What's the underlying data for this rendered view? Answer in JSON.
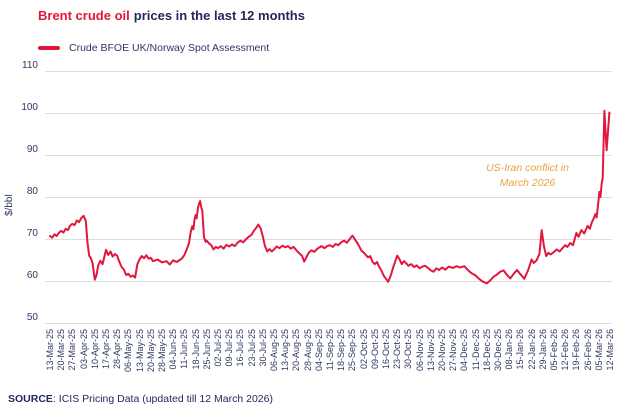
{
  "title": {
    "highlight": "Brent crude oil",
    "rest": "prices in the last 12 months",
    "highlight_color": "#E2173D",
    "rest_color": "#23295B"
  },
  "legend": {
    "label": "Crude BFOE UK/Norway Spot Assessment",
    "swatch_color": "#E2173D"
  },
  "source": {
    "label": "SOURCE",
    "text": ": ICIS Pricing Data (updated till 12 March 2026)"
  },
  "colors": {
    "line": "#E2173D",
    "grid": "#DCDCE1",
    "axis_text": "#2E3862",
    "annotation": "#E8A43E",
    "background": "#FFFFFF"
  },
  "chart_data": {
    "type": "line",
    "title": "Brent crude oil prices in the last 12 months",
    "ylabel": "$/bbl",
    "xlabel": "",
    "ylim": [
      50,
      110
    ],
    "y_ticks": [
      110,
      100,
      90,
      80,
      70,
      60,
      50
    ],
    "grid": "horizontal",
    "legend_position": "top-left",
    "annotation": {
      "line1": "US-Iran conflict in",
      "line2": "March 2026",
      "color": "#E8A43E",
      "style": "italic"
    },
    "x_tick_labels": [
      "13-Mar-25",
      "20-Mar-25",
      "27-Mar-25",
      "03-Apr-25",
      "10-Apr-25",
      "17-Apr-25",
      "28-Apr-25",
      "06-May-25",
      "13-May-25",
      "20-May-25",
      "28-May-25",
      "04-Jun-25",
      "11-Jun-25",
      "18-Jun-25",
      "25-Jun-25",
      "02-Jul-25",
      "09-Jul-25",
      "16-Jul-25",
      "23-Jul-25",
      "30-Jul-25",
      "06-Aug-25",
      "13-Aug-25",
      "20-Aug-25",
      "28-Aug-25",
      "04-Sep-25",
      "11-Sep-25",
      "18-Sep-25",
      "25-Sep-25",
      "02-Oct-25",
      "09-Oct-25",
      "16-Oct-25",
      "23-Oct-25",
      "30-Oct-25",
      "06-Nov-25",
      "13-Nov-25",
      "20-Nov-25",
      "27-Nov-25",
      "04-Dec-25",
      "11-Dec-25",
      "18-Dec-25",
      "30-Dec-25",
      "08-Jan-26",
      "15-Jan-26",
      "22-Jan-26",
      "29-Jan-26",
      "05-Feb-26",
      "12-Feb-26",
      "19-Feb-26",
      "26-Feb-26",
      "05-Mar-26",
      "12-Mar-26"
    ],
    "series": [
      {
        "name": "Crude BFOE UK/Norway Spot Assessment",
        "color": "#E2173D",
        "points": [
          [
            0,
            70.6
          ],
          [
            0.2,
            70.2
          ],
          [
            0.4,
            71.0
          ],
          [
            0.6,
            70.6
          ],
          [
            0.8,
            71.4
          ],
          [
            1,
            71.8
          ],
          [
            1.2,
            71.4
          ],
          [
            1.4,
            72.3
          ],
          [
            1.6,
            72.0
          ],
          [
            1.8,
            73.1
          ],
          [
            2,
            73.5
          ],
          [
            2.2,
            73.2
          ],
          [
            2.4,
            74.3
          ],
          [
            2.6,
            73.9
          ],
          [
            2.8,
            74.9
          ],
          [
            3,
            75.4
          ],
          [
            3.2,
            74.2
          ],
          [
            3.35,
            69.0
          ],
          [
            3.5,
            65.9
          ],
          [
            3.65,
            65.3
          ],
          [
            3.8,
            64.1
          ],
          [
            4,
            60.2
          ],
          [
            4.15,
            61.3
          ],
          [
            4.3,
            63.6
          ],
          [
            4.5,
            64.7
          ],
          [
            4.7,
            63.9
          ],
          [
            4.85,
            65.6
          ],
          [
            5,
            67.3
          ],
          [
            5.2,
            66.1
          ],
          [
            5.4,
            66.9
          ],
          [
            5.6,
            65.7
          ],
          [
            5.8,
            66.3
          ],
          [
            6,
            65.9
          ],
          [
            6.2,
            64.4
          ],
          [
            6.4,
            63.2
          ],
          [
            6.6,
            62.6
          ],
          [
            6.8,
            61.3
          ],
          [
            7,
            61.6
          ],
          [
            7.2,
            60.9
          ],
          [
            7.4,
            61.2
          ],
          [
            7.6,
            60.7
          ],
          [
            7.8,
            63.9
          ],
          [
            8,
            65.1
          ],
          [
            8.2,
            65.8
          ],
          [
            8.4,
            65.3
          ],
          [
            8.6,
            66.0
          ],
          [
            8.8,
            65.2
          ],
          [
            9,
            65.4
          ],
          [
            9.2,
            64.6
          ],
          [
            9.6,
            65.0
          ],
          [
            10,
            64.3
          ],
          [
            10.4,
            64.6
          ],
          [
            10.7,
            63.8
          ],
          [
            11,
            64.8
          ],
          [
            11.3,
            64.4
          ],
          [
            11.6,
            64.9
          ],
          [
            11.8,
            65.3
          ],
          [
            12,
            66.1
          ],
          [
            12.2,
            67.3
          ],
          [
            12.4,
            68.8
          ],
          [
            12.55,
            71.4
          ],
          [
            12.7,
            72.9
          ],
          [
            12.8,
            72.2
          ],
          [
            12.9,
            74.5
          ],
          [
            13,
            75.6
          ],
          [
            13.1,
            74.8
          ],
          [
            13.2,
            77.1
          ],
          [
            13.3,
            78.3
          ],
          [
            13.4,
            78.9
          ],
          [
            13.5,
            77.5
          ],
          [
            13.6,
            76.7
          ],
          [
            13.75,
            70.3
          ],
          [
            13.9,
            69.2
          ],
          [
            14,
            69.5
          ],
          [
            14.2,
            68.8
          ],
          [
            14.4,
            68.4
          ],
          [
            14.6,
            67.4
          ],
          [
            14.8,
            68.0
          ],
          [
            15,
            67.7
          ],
          [
            15.25,
            68.2
          ],
          [
            15.5,
            67.6
          ],
          [
            15.75,
            68.5
          ],
          [
            16,
            68.1
          ],
          [
            16.25,
            68.6
          ],
          [
            16.5,
            68.2
          ],
          [
            16.75,
            69.0
          ],
          [
            17,
            69.5
          ],
          [
            17.25,
            69.1
          ],
          [
            17.5,
            69.8
          ],
          [
            17.75,
            70.4
          ],
          [
            18,
            70.9
          ],
          [
            18.2,
            71.8
          ],
          [
            18.4,
            72.5
          ],
          [
            18.6,
            73.3
          ],
          [
            18.8,
            72.4
          ],
          [
            19,
            70.5
          ],
          [
            19.2,
            68.2
          ],
          [
            19.4,
            66.9
          ],
          [
            19.6,
            67.5
          ],
          [
            19.8,
            66.9
          ],
          [
            20,
            67.4
          ],
          [
            20.25,
            68.1
          ],
          [
            20.5,
            67.7
          ],
          [
            20.75,
            68.3
          ],
          [
            21,
            67.9
          ],
          [
            21.25,
            68.2
          ],
          [
            21.5,
            67.6
          ],
          [
            21.75,
            68.0
          ],
          [
            22,
            67.2
          ],
          [
            22.25,
            66.5
          ],
          [
            22.5,
            65.9
          ],
          [
            22.7,
            64.5
          ],
          [
            22.9,
            65.6
          ],
          [
            23.1,
            66.6
          ],
          [
            23.35,
            67.2
          ],
          [
            23.6,
            66.8
          ],
          [
            23.8,
            67.4
          ],
          [
            24,
            67.8
          ],
          [
            24.25,
            68.2
          ],
          [
            24.5,
            67.7
          ],
          [
            24.75,
            68.2
          ],
          [
            25,
            68.4
          ],
          [
            25.25,
            68.0
          ],
          [
            25.5,
            68.7
          ],
          [
            25.75,
            68.4
          ],
          [
            26,
            69.1
          ],
          [
            26.25,
            69.5
          ],
          [
            26.5,
            69.0
          ],
          [
            26.75,
            69.8
          ],
          [
            27,
            70.7
          ],
          [
            27.2,
            69.9
          ],
          [
            27.4,
            69.1
          ],
          [
            27.6,
            68.2
          ],
          [
            27.8,
            67.1
          ],
          [
            28,
            66.7
          ],
          [
            28.2,
            66.1
          ],
          [
            28.4,
            65.5
          ],
          [
            28.6,
            65.8
          ],
          [
            28.8,
            64.4
          ],
          [
            29,
            63.9
          ],
          [
            29.2,
            64.4
          ],
          [
            29.4,
            63.2
          ],
          [
            29.6,
            62.3
          ],
          [
            29.8,
            61.1
          ],
          [
            30,
            60.4
          ],
          [
            30.2,
            59.7
          ],
          [
            30.4,
            61.0
          ],
          [
            30.7,
            63.6
          ],
          [
            31,
            65.9
          ],
          [
            31.2,
            65.1
          ],
          [
            31.4,
            63.9
          ],
          [
            31.6,
            64.6
          ],
          [
            31.8,
            64.1
          ],
          [
            32,
            63.5
          ],
          [
            32.25,
            63.9
          ],
          [
            32.5,
            63.2
          ],
          [
            32.75,
            63.6
          ],
          [
            33,
            62.9
          ],
          [
            33.25,
            63.3
          ],
          [
            33.5,
            63.5
          ],
          [
            33.75,
            63.0
          ],
          [
            34,
            62.4
          ],
          [
            34.25,
            62.1
          ],
          [
            34.5,
            62.9
          ],
          [
            34.75,
            62.5
          ],
          [
            35,
            63.1
          ],
          [
            35.3,
            62.6
          ],
          [
            35.6,
            63.3
          ],
          [
            36,
            63.0
          ],
          [
            36.3,
            63.4
          ],
          [
            36.6,
            63.1
          ],
          [
            37,
            63.4
          ],
          [
            37.3,
            62.5
          ],
          [
            37.6,
            61.8
          ],
          [
            38,
            61.2
          ],
          [
            38.3,
            60.4
          ],
          [
            38.6,
            59.8
          ],
          [
            39,
            59.3
          ],
          [
            39.3,
            60.0
          ],
          [
            39.6,
            60.9
          ],
          [
            39.9,
            61.4
          ],
          [
            40.2,
            62.1
          ],
          [
            40.5,
            62.4
          ],
          [
            40.8,
            61.3
          ],
          [
            41.1,
            60.5
          ],
          [
            41.4,
            61.6
          ],
          [
            41.7,
            62.5
          ],
          [
            42,
            61.5
          ],
          [
            42.35,
            60.4
          ],
          [
            42.7,
            62.5
          ],
          [
            43,
            65.0
          ],
          [
            43.2,
            64.2
          ],
          [
            43.45,
            64.8
          ],
          [
            43.7,
            66.3
          ],
          [
            43.9,
            72.0
          ],
          [
            44.1,
            68.2
          ],
          [
            44.3,
            65.8
          ],
          [
            44.5,
            66.6
          ],
          [
            44.7,
            66.2
          ],
          [
            45,
            66.8
          ],
          [
            45.25,
            67.4
          ],
          [
            45.5,
            66.9
          ],
          [
            45.75,
            67.7
          ],
          [
            46,
            68.4
          ],
          [
            46.2,
            68.0
          ],
          [
            46.45,
            68.9
          ],
          [
            46.7,
            68.4
          ],
          [
            47,
            71.3
          ],
          [
            47.2,
            70.4
          ],
          [
            47.45,
            72.0
          ],
          [
            47.7,
            71.2
          ],
          [
            48,
            73.0
          ],
          [
            48.2,
            72.3
          ],
          [
            48.4,
            74.0
          ],
          [
            48.55,
            74.8
          ],
          [
            48.7,
            75.8
          ],
          [
            48.8,
            75.0
          ],
          [
            48.95,
            78.3
          ],
          [
            49.05,
            81.1
          ],
          [
            49.15,
            79.9
          ],
          [
            49.25,
            82.9
          ],
          [
            49.35,
            84.5
          ],
          [
            49.5,
            100.4
          ],
          [
            49.7,
            91.0
          ],
          [
            49.95,
            100.0
          ]
        ]
      }
    ]
  }
}
